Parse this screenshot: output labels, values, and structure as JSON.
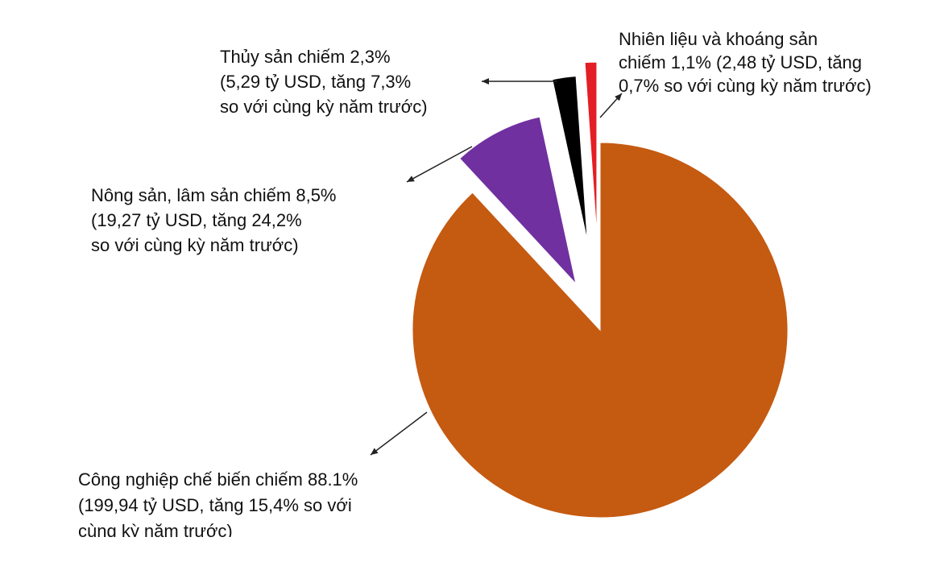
{
  "chart_data": {
    "type": "pie",
    "values": [
      88.1,
      8.5,
      2.3,
      1.1
    ],
    "colors": [
      "#c55a11",
      "#7030a0",
      "#000000",
      "#e31e24"
    ],
    "labels": [
      [
        "Công nghiệp chế biến chiếm 88.1%",
        "(199,94 tỷ USD, tăng 15,4% so với",
        "cùng kỳ năm trước)"
      ],
      [
        "Nông sản, lâm sản chiếm 8,5%",
        "(19,27 tỷ USD, tăng 24,2%",
        "so với cùng kỳ năm trước)"
      ],
      [
        "Thủy sản chiếm 2,3%",
        "(5,29 tỷ USD, tăng 7,3%",
        "so với cùng kỳ năm trước)"
      ],
      [
        "Nhiên liệu và khoáng sản",
        "chiếm 1,1% (2,48 tỷ USD, tăng",
        "0,7% so với cùng kỳ năm trước)"
      ]
    ]
  }
}
